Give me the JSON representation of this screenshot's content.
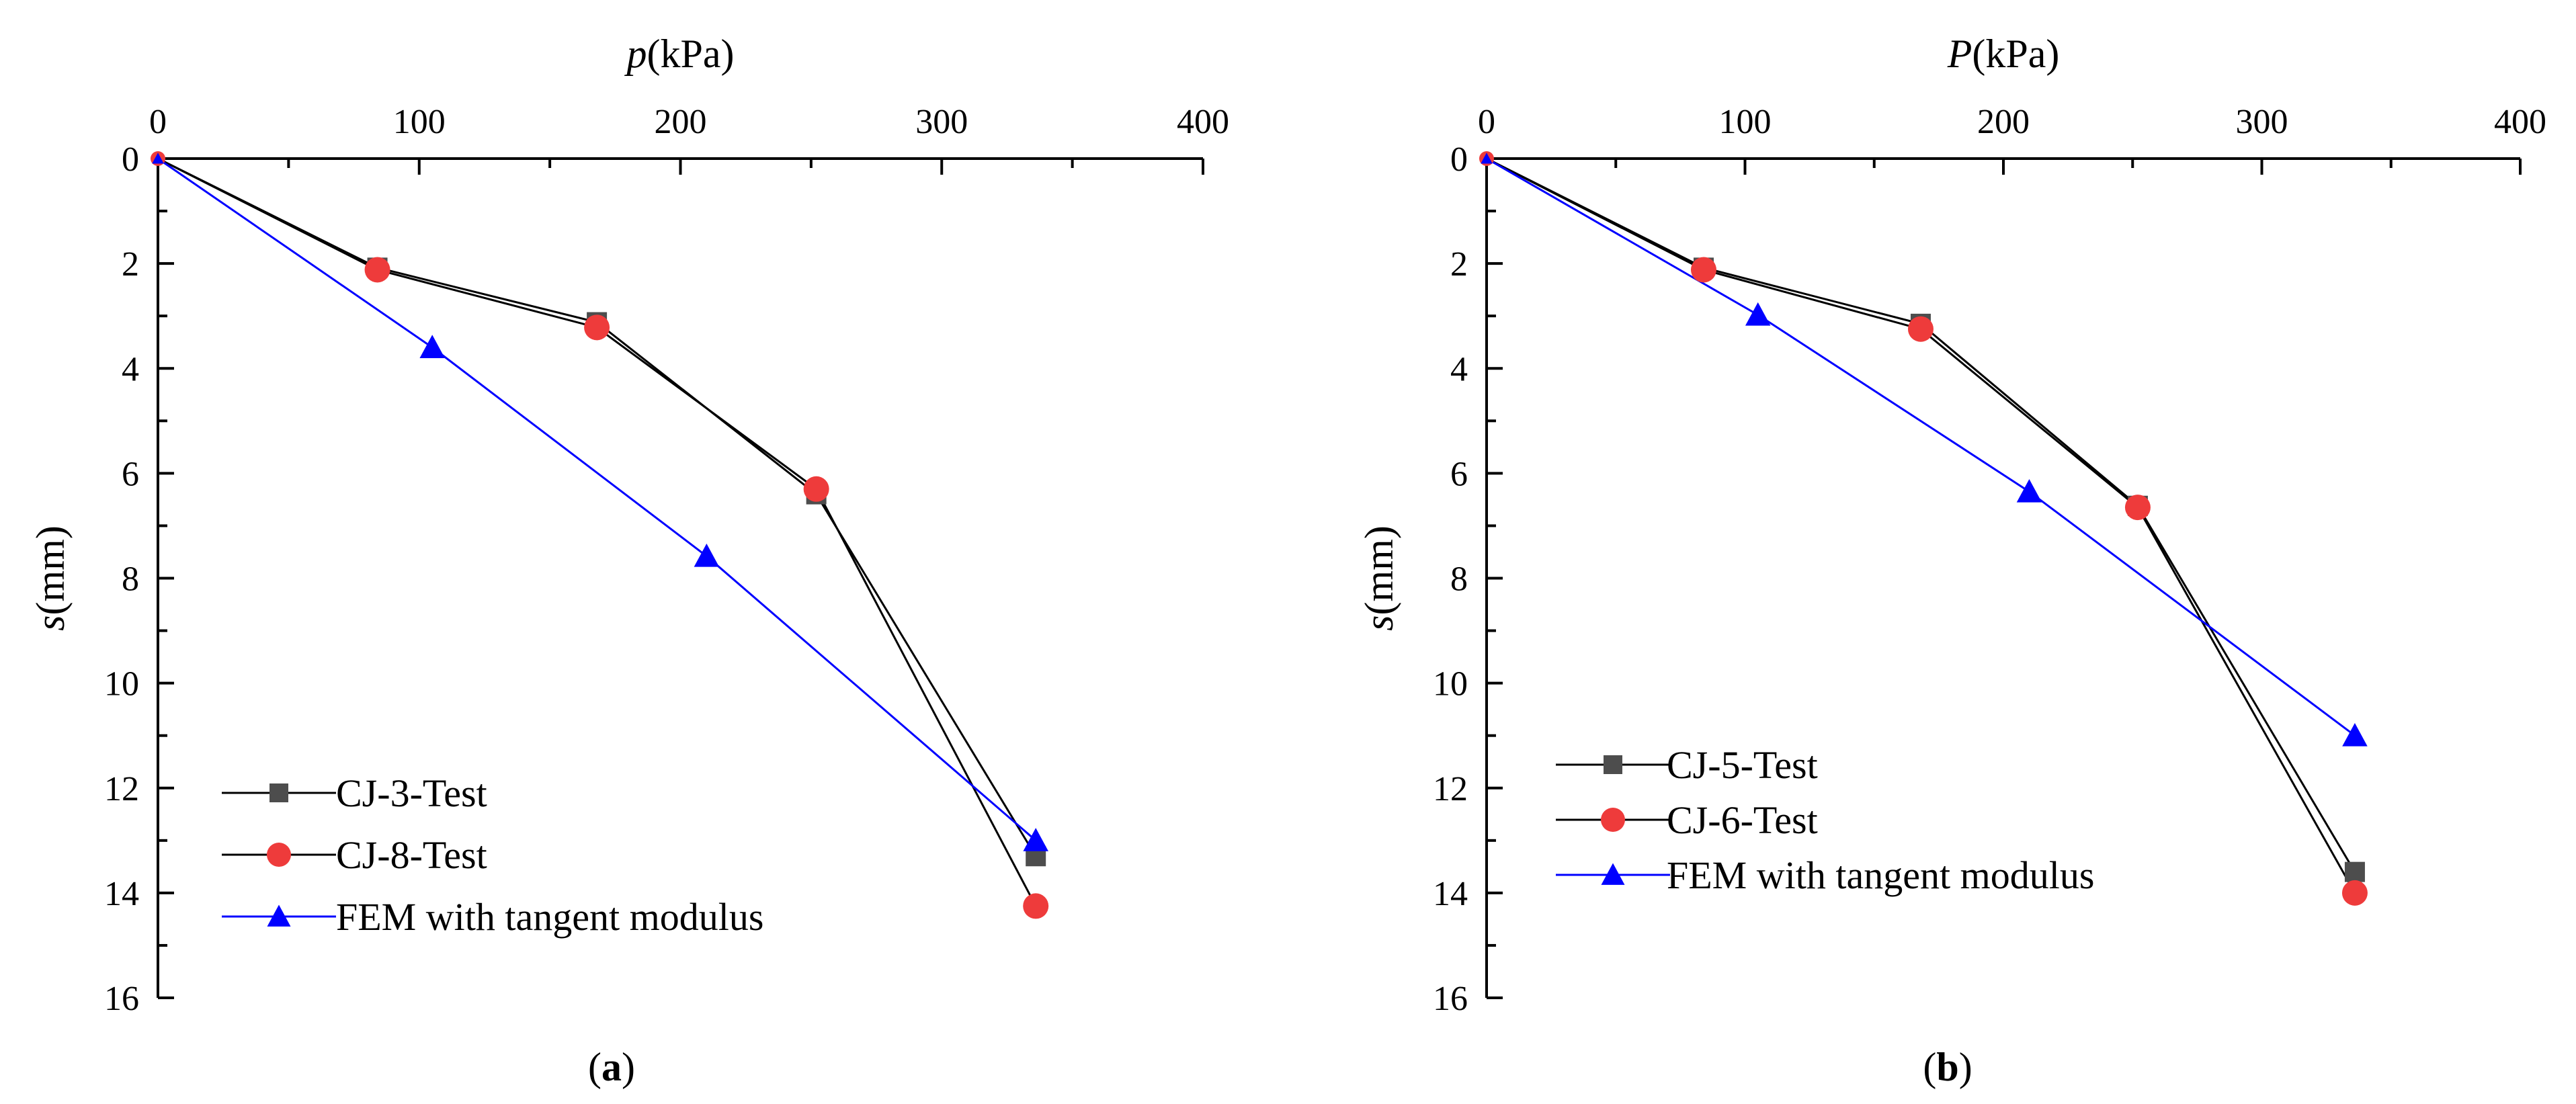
{
  "chart_data": [
    {
      "type": "line",
      "panel_label": "a",
      "xlabel": {
        "italic": "p",
        "rest": "(kPa)"
      },
      "ylabel": {
        "italic": "s",
        "rest": "(mm)"
      },
      "xlim": [
        0,
        400
      ],
      "ylim": [
        0,
        16
      ],
      "y_inverted": true,
      "x_axis_position": "top",
      "x_ticks": [
        0,
        100,
        200,
        300,
        400
      ],
      "y_ticks": [
        0,
        2,
        4,
        6,
        8,
        10,
        12,
        14,
        16
      ],
      "legend_position": "bottom-left",
      "series": [
        {
          "name": "CJ-3-Test",
          "marker": "square",
          "color": "#4d4d4d",
          "line_color": "#000000",
          "x": [
            0,
            84,
            168,
            252,
            336
          ],
          "y": [
            0,
            2.08,
            3.12,
            6.4,
            13.3
          ]
        },
        {
          "name": "CJ-8-Test",
          "marker": "circle",
          "color": "#ee3b3b",
          "line_color": "#000000",
          "x": [
            0,
            84,
            168,
            252,
            336
          ],
          "y": [
            0,
            2.12,
            3.22,
            6.3,
            14.25
          ]
        },
        {
          "name": "FEM with tangent modulus",
          "marker": "triangle",
          "color": "#0000ff",
          "line_color": "#0000ff",
          "x": [
            0,
            105,
            210,
            336
          ],
          "y": [
            0,
            3.6,
            7.58,
            13.0
          ]
        }
      ]
    },
    {
      "type": "line",
      "panel_label": "b",
      "xlabel": {
        "italic": "P",
        "rest": "(kPa)"
      },
      "ylabel": {
        "italic": "s",
        "rest": "(mm)"
      },
      "xlim": [
        0,
        400
      ],
      "ylim": [
        0,
        16
      ],
      "y_inverted": true,
      "x_axis_position": "top",
      "x_ticks": [
        0,
        100,
        200,
        300,
        400
      ],
      "y_ticks": [
        0,
        2,
        4,
        6,
        8,
        10,
        12,
        14,
        16
      ],
      "legend_position": "bottom-left",
      "series": [
        {
          "name": "CJ-5-Test",
          "marker": "square",
          "color": "#4d4d4d",
          "line_color": "#000000",
          "x": [
            0,
            84,
            168,
            252,
            336
          ],
          "y": [
            0,
            2.08,
            3.15,
            6.62,
            13.6
          ]
        },
        {
          "name": "CJ-6-Test",
          "marker": "circle",
          "color": "#ee3b3b",
          "line_color": "#000000",
          "x": [
            0,
            84,
            168,
            252,
            336
          ],
          "y": [
            0,
            2.12,
            3.25,
            6.65,
            14.0
          ]
        },
        {
          "name": "FEM with tangent modulus",
          "marker": "triangle",
          "color": "#0000ff",
          "line_color": "#0000ff",
          "x": [
            0,
            105,
            210,
            336
          ],
          "y": [
            0,
            2.98,
            6.35,
            11.0
          ]
        }
      ]
    }
  ]
}
